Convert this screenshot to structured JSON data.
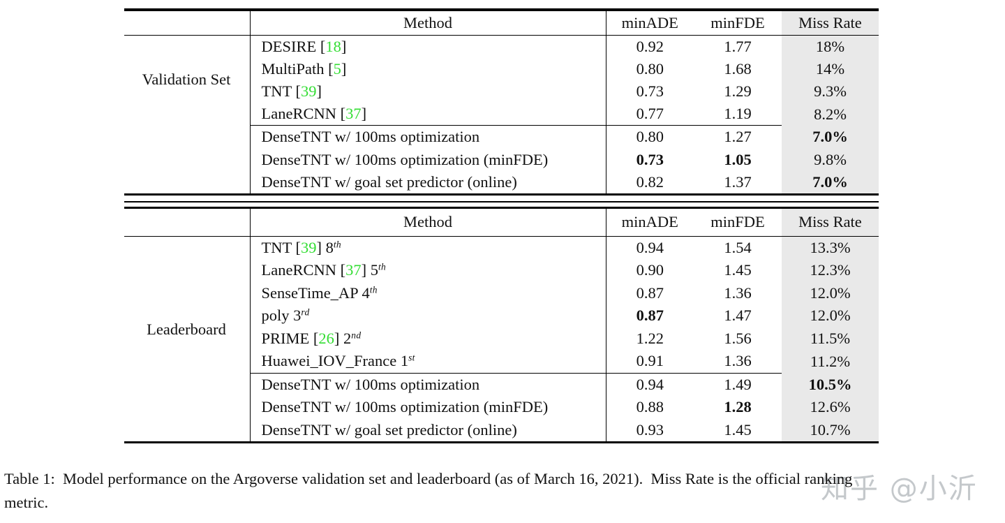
{
  "colors": {
    "citation_green": "#33dd33",
    "miss_rate_column_bg": "#e9e9e9",
    "text": "#111111",
    "watermark_gray": "#949aa0"
  },
  "header": {
    "col_method": "Method",
    "col_minade": "minADE",
    "col_minfde": "minFDE",
    "col_miss": "Miss Rate"
  },
  "tables": [
    {
      "name": "validation",
      "group_label": "Validation Set",
      "rows": [
        {
          "method": [
            {
              "t": "DESIRE ["
            },
            {
              "t": "18",
              "green": true
            },
            {
              "t": "]"
            }
          ],
          "minADE": "0.92",
          "minFDE": "1.77",
          "miss": "18%",
          "bold": [],
          "section": 0
        },
        {
          "method": [
            {
              "t": "MultiPath ["
            },
            {
              "t": "5",
              "green": true
            },
            {
              "t": "]"
            }
          ],
          "minADE": "0.80",
          "minFDE": "1.68",
          "miss": "14%",
          "bold": [],
          "section": 0
        },
        {
          "method": [
            {
              "t": "TNT ["
            },
            {
              "t": "39",
              "green": true
            },
            {
              "t": "]"
            }
          ],
          "minADE": "0.73",
          "minFDE": "1.29",
          "miss": "9.3%",
          "bold": [],
          "section": 0
        },
        {
          "method": [
            {
              "t": "LaneRCNN ["
            },
            {
              "t": "37",
              "green": true
            },
            {
              "t": "]"
            }
          ],
          "minADE": "0.77",
          "minFDE": "1.19",
          "miss": "8.2%",
          "bold": [],
          "section": 0
        },
        {
          "method": [
            {
              "t": "DenseTNT w/ 100ms optimization"
            }
          ],
          "minADE": "0.80",
          "minFDE": "1.27",
          "miss": "7.0%",
          "bold": [
            "miss"
          ],
          "section": 1
        },
        {
          "method": [
            {
              "t": "DenseTNT w/ 100ms optimization (minFDE)"
            }
          ],
          "minADE": "0.73",
          "minFDE": "1.05",
          "miss": "9.8%",
          "bold": [
            "minADE",
            "minFDE"
          ],
          "section": 1
        },
        {
          "method": [
            {
              "t": "DenseTNT w/ goal set predictor (online)"
            }
          ],
          "minADE": "0.82",
          "minFDE": "1.37",
          "miss": "7.0%",
          "bold": [
            "miss"
          ],
          "section": 1
        }
      ]
    },
    {
      "name": "leaderboard",
      "group_label": "Leaderboard",
      "rows": [
        {
          "method": [
            {
              "t": "TNT ["
            },
            {
              "t": "39",
              "green": true
            },
            {
              "t": "] "
            },
            {
              "t": "8"
            },
            {
              "t": "th",
              "sup": true
            }
          ],
          "minADE": "0.94",
          "minFDE": "1.54",
          "miss": "13.3%",
          "bold": [],
          "section": 0
        },
        {
          "method": [
            {
              "t": "LaneRCNN ["
            },
            {
              "t": "37",
              "green": true
            },
            {
              "t": "] "
            },
            {
              "t": "5"
            },
            {
              "t": "th",
              "sup": true
            }
          ],
          "minADE": "0.90",
          "minFDE": "1.45",
          "miss": "12.3%",
          "bold": [],
          "section": 0
        },
        {
          "method": [
            {
              "t": "SenseTime_AP "
            },
            {
              "t": "4"
            },
            {
              "t": "th",
              "sup": true
            }
          ],
          "minADE": "0.87",
          "minFDE": "1.36",
          "miss": "12.0%",
          "bold": [],
          "section": 0
        },
        {
          "method": [
            {
              "t": "poly "
            },
            {
              "t": "3"
            },
            {
              "t": "rd",
              "sup": true
            }
          ],
          "minADE": "0.87",
          "minFDE": "1.47",
          "miss": "12.0%",
          "bold": [
            "minADE"
          ],
          "section": 0
        },
        {
          "method": [
            {
              "t": "PRIME ["
            },
            {
              "t": "26",
              "green": true
            },
            {
              "t": "] "
            },
            {
              "t": "2"
            },
            {
              "t": "nd",
              "sup": true
            }
          ],
          "minADE": "1.22",
          "minFDE": "1.56",
          "miss": "11.5%",
          "bold": [],
          "section": 0
        },
        {
          "method": [
            {
              "t": "Huawei_IOV_France "
            },
            {
              "t": "1"
            },
            {
              "t": "st",
              "sup": true
            }
          ],
          "minADE": "0.91",
          "minFDE": "1.36",
          "miss": "11.2%",
          "bold": [],
          "section": 0
        },
        {
          "method": [
            {
              "t": "DenseTNT w/ 100ms optimization"
            }
          ],
          "minADE": "0.94",
          "minFDE": "1.49",
          "miss": "10.5%",
          "bold": [
            "miss"
          ],
          "section": 1
        },
        {
          "method": [
            {
              "t": "DenseTNT w/ 100ms optimization (minFDE)"
            }
          ],
          "minADE": "0.88",
          "minFDE": "1.28",
          "miss": "12.6%",
          "bold": [
            "minFDE"
          ],
          "section": 1
        },
        {
          "method": [
            {
              "t": "DenseTNT w/ goal set predictor (online)"
            }
          ],
          "minADE": "0.93",
          "minFDE": "1.45",
          "miss": "10.7%",
          "bold": [],
          "section": 1
        }
      ]
    }
  ],
  "caption": {
    "line1": "Table 1:  Model performance on the Argoverse validation set and leaderboard (as of March 16, 2021).  Miss Rate is the official ranking",
    "line2": "metric."
  },
  "watermark": {
    "text": "知乎 @小沂"
  }
}
